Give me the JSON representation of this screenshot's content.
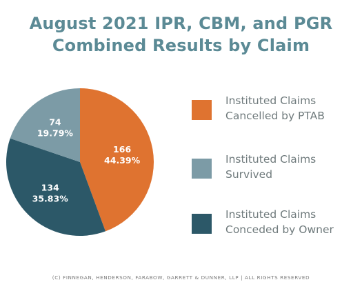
{
  "colors": {
    "title": "#5b8a95",
    "legend_text": "#6f7a7c",
    "footer_text": "#7b7b7b"
  },
  "chart_data": {
    "type": "pie",
    "title_lines": [
      "August 2021 IPR, CBM, and PGR",
      "Combined Results by Claim"
    ],
    "slices": [
      {
        "name_lines": [
          "Instituted Claims",
          "Cancelled by PTAB"
        ],
        "value": 166,
        "value_label": "166",
        "percent_label": "44.39%",
        "color": "#df7330"
      },
      {
        "name_lines": [
          "Instituted Claims",
          "Conceded by Owner"
        ],
        "value": 134,
        "value_label": "134",
        "percent_label": "35.83%",
        "color": "#2c5868"
      },
      {
        "name_lines": [
          "Instituted Claims",
          "Survived"
        ],
        "value": 74,
        "value_label": "74",
        "percent_label": "19.79%",
        "color": "#7c9ba6"
      }
    ],
    "legend_order": [
      0,
      2,
      1
    ],
    "legend_position": "right"
  },
  "footer": "(C) FINNEGAN, HENDERSON, FARABOW, GARRETT & DUNNER, LLP | ALL RIGHTS RESERVED"
}
